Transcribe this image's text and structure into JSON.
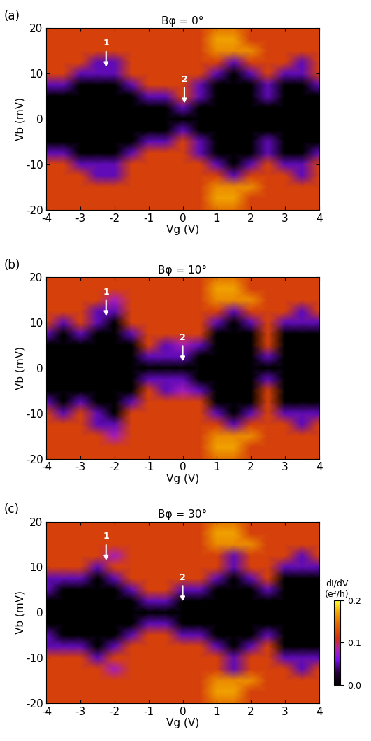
{
  "chart_data": [
    {
      "type": "heatmap",
      "panel_label": "(a)",
      "title": "Bφ = 0°",
      "x_label": "Vg (V)",
      "y_label": "Vb (mV)",
      "xlim": [
        -4,
        4
      ],
      "ylim": [
        -20,
        20
      ],
      "xticks": [
        -4,
        -3,
        -2,
        -1,
        0,
        1,
        2,
        3,
        4
      ],
      "yticks": [
        -20,
        -10,
        0,
        10,
        20
      ],
      "x": [
        -4,
        -3.5,
        -3,
        -2.5,
        -2,
        -1.5,
        -1,
        -0.5,
        0,
        0.5,
        1,
        1.5,
        2,
        2.5,
        3,
        3.5,
        4
      ],
      "y": [
        -20,
        -17.5,
        -15,
        -12.5,
        -10,
        -7.5,
        -5,
        -2.5,
        0,
        2.5,
        5,
        7.5,
        10,
        12.5,
        15,
        17.5,
        20
      ],
      "cells": [
        [
          0.12,
          0.12,
          0.12,
          0.12,
          0.12,
          0.12,
          0.12,
          0.12,
          0.12,
          0.12,
          0.15,
          0.15,
          0.12,
          0.12,
          0.12,
          0.12,
          0.12
        ],
        [
          0.12,
          0.12,
          0.12,
          0.12,
          0.12,
          0.12,
          0.12,
          0.12,
          0.12,
          0.12,
          0.17,
          0.17,
          0.12,
          0.12,
          0.12,
          0.12,
          0.12
        ],
        [
          0.12,
          0.12,
          0.12,
          0.12,
          0.12,
          0.12,
          0.12,
          0.12,
          0.12,
          0.12,
          0.16,
          0.16,
          0.16,
          0.12,
          0.12,
          0.12,
          0.12
        ],
        [
          0.12,
          0.12,
          0.12,
          0.05,
          0.05,
          0.12,
          0.12,
          0.12,
          0.12,
          0.12,
          0.12,
          0.05,
          0.12,
          0.12,
          0.12,
          0.05,
          0.12
        ],
        [
          0.12,
          0.12,
          0.05,
          0.05,
          0.05,
          0.12,
          0.12,
          0.12,
          0.12,
          0.12,
          0.05,
          0.0,
          0.05,
          0.12,
          0.05,
          0.05,
          0.12
        ],
        [
          0.05,
          0.05,
          0.0,
          0.0,
          0.0,
          0.05,
          0.12,
          0.12,
          0.12,
          0.05,
          0.0,
          0.0,
          0.0,
          0.05,
          0.0,
          0.0,
          0.05
        ],
        [
          0.0,
          0.0,
          0.0,
          0.0,
          0.0,
          0.0,
          0.05,
          0.05,
          0.12,
          0.05,
          0.0,
          0.0,
          0.0,
          0.05,
          0.0,
          0.0,
          0.0
        ],
        [
          0.0,
          0.0,
          0.0,
          0.0,
          0.0,
          0.0,
          0.0,
          0.0,
          0.05,
          0.0,
          0.0,
          0.0,
          0.0,
          0.0,
          0.0,
          0.0,
          0.0
        ],
        [
          0.0,
          0.0,
          0.0,
          0.0,
          0.0,
          0.0,
          0.0,
          0.0,
          0.0,
          0.0,
          0.0,
          0.0,
          0.0,
          0.0,
          0.0,
          0.0,
          0.0
        ],
        [
          0.0,
          0.0,
          0.0,
          0.0,
          0.0,
          0.0,
          0.0,
          0.0,
          0.05,
          0.0,
          0.0,
          0.0,
          0.0,
          0.0,
          0.0,
          0.0,
          0.0
        ],
        [
          0.0,
          0.0,
          0.0,
          0.0,
          0.0,
          0.0,
          0.05,
          0.05,
          0.12,
          0.05,
          0.0,
          0.0,
          0.0,
          0.05,
          0.0,
          0.0,
          0.0
        ],
        [
          0.05,
          0.05,
          0.0,
          0.0,
          0.0,
          0.05,
          0.12,
          0.12,
          0.12,
          0.05,
          0.0,
          0.0,
          0.0,
          0.05,
          0.0,
          0.0,
          0.05
        ],
        [
          0.12,
          0.12,
          0.05,
          0.05,
          0.05,
          0.12,
          0.12,
          0.12,
          0.12,
          0.12,
          0.05,
          0.0,
          0.05,
          0.12,
          0.05,
          0.05,
          0.12
        ],
        [
          0.12,
          0.12,
          0.12,
          0.05,
          0.05,
          0.12,
          0.12,
          0.12,
          0.12,
          0.12,
          0.12,
          0.05,
          0.12,
          0.12,
          0.12,
          0.05,
          0.12
        ],
        [
          0.12,
          0.12,
          0.12,
          0.12,
          0.12,
          0.12,
          0.12,
          0.12,
          0.12,
          0.12,
          0.16,
          0.16,
          0.16,
          0.12,
          0.12,
          0.12,
          0.12
        ],
        [
          0.12,
          0.12,
          0.12,
          0.12,
          0.12,
          0.12,
          0.12,
          0.12,
          0.12,
          0.12,
          0.17,
          0.17,
          0.12,
          0.12,
          0.12,
          0.12,
          0.12
        ],
        [
          0.12,
          0.12,
          0.12,
          0.12,
          0.12,
          0.12,
          0.12,
          0.12,
          0.12,
          0.12,
          0.15,
          0.15,
          0.12,
          0.12,
          0.12,
          0.12,
          0.12
        ]
      ],
      "annotations": [
        {
          "text": "1",
          "x": -2.25,
          "y": 11
        },
        {
          "text": "2",
          "x": 0.05,
          "y": 3
        }
      ]
    },
    {
      "type": "heatmap",
      "panel_label": "(b)",
      "title": "Bφ = 10°",
      "x_label": "Vg (V)",
      "y_label": "Vb (mV)",
      "xlim": [
        -4,
        4
      ],
      "ylim": [
        -20,
        20
      ],
      "xticks": [
        -4,
        -3,
        -2,
        -1,
        0,
        1,
        2,
        3,
        4
      ],
      "yticks": [
        -20,
        -10,
        0,
        10,
        20
      ],
      "x": [
        -4,
        -3.5,
        -3,
        -2.5,
        -2,
        -1.5,
        -1,
        -0.5,
        0,
        0.5,
        1,
        1.5,
        2,
        2.5,
        3,
        3.5,
        4
      ],
      "y": [
        -20,
        -17.5,
        -15,
        -12.5,
        -10,
        -7.5,
        -5,
        -2.5,
        0,
        2.5,
        5,
        7.5,
        10,
        12.5,
        15,
        17.5,
        20
      ],
      "cells": [
        [
          0.12,
          0.12,
          0.12,
          0.12,
          0.12,
          0.12,
          0.12,
          0.12,
          0.12,
          0.12,
          0.15,
          0.15,
          0.12,
          0.12,
          0.12,
          0.12,
          0.12
        ],
        [
          0.12,
          0.12,
          0.12,
          0.12,
          0.12,
          0.12,
          0.12,
          0.12,
          0.12,
          0.12,
          0.17,
          0.17,
          0.12,
          0.12,
          0.12,
          0.12,
          0.12
        ],
        [
          0.12,
          0.12,
          0.12,
          0.12,
          0.08,
          0.12,
          0.12,
          0.12,
          0.12,
          0.12,
          0.16,
          0.16,
          0.16,
          0.12,
          0.12,
          0.12,
          0.12
        ],
        [
          0.12,
          0.12,
          0.12,
          0.05,
          0.05,
          0.12,
          0.12,
          0.12,
          0.12,
          0.12,
          0.12,
          0.05,
          0.12,
          0.12,
          0.12,
          0.05,
          0.12
        ],
        [
          0.12,
          0.05,
          0.12,
          0.05,
          0.0,
          0.12,
          0.12,
          0.12,
          0.12,
          0.12,
          0.05,
          0.0,
          0.05,
          0.12,
          0.05,
          0.05,
          0.05
        ],
        [
          0.05,
          0.0,
          0.05,
          0.0,
          0.0,
          0.05,
          0.12,
          0.12,
          0.12,
          0.12,
          0.0,
          0.0,
          0.0,
          0.12,
          0.0,
          0.0,
          0.0
        ],
        [
          0.0,
          0.0,
          0.0,
          0.0,
          0.0,
          0.0,
          0.12,
          0.05,
          0.08,
          0.05,
          0.0,
          0.0,
          0.0,
          0.12,
          0.0,
          0.0,
          0.0
        ],
        [
          0.0,
          0.0,
          0.0,
          0.0,
          0.0,
          0.0,
          0.05,
          0.05,
          0.05,
          0.0,
          0.0,
          0.0,
          0.0,
          0.05,
          0.0,
          0.0,
          0.0
        ],
        [
          0.0,
          0.0,
          0.0,
          0.0,
          0.0,
          0.0,
          0.0,
          0.0,
          0.0,
          0.0,
          0.0,
          0.0,
          0.0,
          0.0,
          0.0,
          0.0,
          0.0
        ],
        [
          0.0,
          0.0,
          0.0,
          0.0,
          0.0,
          0.0,
          0.05,
          0.05,
          0.05,
          0.0,
          0.0,
          0.0,
          0.0,
          0.05,
          0.0,
          0.0,
          0.0
        ],
        [
          0.0,
          0.0,
          0.0,
          0.0,
          0.0,
          0.0,
          0.12,
          0.05,
          0.08,
          0.05,
          0.0,
          0.0,
          0.0,
          0.12,
          0.0,
          0.0,
          0.0
        ],
        [
          0.05,
          0.0,
          0.05,
          0.0,
          0.0,
          0.05,
          0.12,
          0.12,
          0.12,
          0.12,
          0.0,
          0.0,
          0.0,
          0.12,
          0.0,
          0.0,
          0.0
        ],
        [
          0.12,
          0.05,
          0.12,
          0.05,
          0.0,
          0.12,
          0.12,
          0.12,
          0.12,
          0.12,
          0.05,
          0.0,
          0.05,
          0.12,
          0.05,
          0.05,
          0.05
        ],
        [
          0.12,
          0.12,
          0.12,
          0.05,
          0.05,
          0.12,
          0.12,
          0.12,
          0.12,
          0.12,
          0.12,
          0.05,
          0.12,
          0.12,
          0.12,
          0.05,
          0.12
        ],
        [
          0.12,
          0.12,
          0.12,
          0.12,
          0.08,
          0.12,
          0.12,
          0.12,
          0.12,
          0.12,
          0.16,
          0.16,
          0.16,
          0.12,
          0.12,
          0.12,
          0.12
        ],
        [
          0.12,
          0.12,
          0.12,
          0.12,
          0.12,
          0.12,
          0.12,
          0.12,
          0.12,
          0.12,
          0.17,
          0.17,
          0.12,
          0.12,
          0.12,
          0.12,
          0.12
        ],
        [
          0.12,
          0.12,
          0.12,
          0.12,
          0.12,
          0.12,
          0.12,
          0.12,
          0.12,
          0.12,
          0.15,
          0.15,
          0.12,
          0.12,
          0.12,
          0.12,
          0.12
        ]
      ],
      "annotations": [
        {
          "text": "1",
          "x": -2.25,
          "y": 11
        },
        {
          "text": "2",
          "x": 0.0,
          "y": 1
        }
      ]
    },
    {
      "type": "heatmap",
      "panel_label": "(c)",
      "title": "Bφ = 30°",
      "x_label": "Vg (V)",
      "y_label": "Vb (mV)",
      "xlim": [
        -4,
        4
      ],
      "ylim": [
        -20,
        20
      ],
      "xticks": [
        -4,
        -3,
        -2,
        -1,
        0,
        1,
        2,
        3,
        4
      ],
      "yticks": [
        -20,
        -10,
        0,
        10,
        20
      ],
      "x": [
        -4,
        -3.5,
        -3,
        -2.5,
        -2,
        -1.5,
        -1,
        -0.5,
        0,
        0.5,
        1,
        1.5,
        2,
        2.5,
        3,
        3.5,
        4
      ],
      "y": [
        -20,
        -17.5,
        -15,
        -12.5,
        -10,
        -7.5,
        -5,
        -2.5,
        0,
        2.5,
        5,
        7.5,
        10,
        12.5,
        15,
        17.5,
        20
      ],
      "cells": [
        [
          0.12,
          0.12,
          0.12,
          0.12,
          0.12,
          0.12,
          0.12,
          0.12,
          0.12,
          0.12,
          0.15,
          0.15,
          0.12,
          0.12,
          0.12,
          0.12,
          0.12
        ],
        [
          0.12,
          0.12,
          0.12,
          0.12,
          0.12,
          0.12,
          0.12,
          0.12,
          0.12,
          0.12,
          0.17,
          0.17,
          0.12,
          0.12,
          0.12,
          0.12,
          0.12
        ],
        [
          0.12,
          0.12,
          0.12,
          0.12,
          0.12,
          0.12,
          0.12,
          0.12,
          0.12,
          0.12,
          0.16,
          0.16,
          0.16,
          0.12,
          0.12,
          0.12,
          0.12
        ],
        [
          0.12,
          0.12,
          0.12,
          0.12,
          0.08,
          0.12,
          0.12,
          0.12,
          0.12,
          0.12,
          0.12,
          0.05,
          0.12,
          0.12,
          0.12,
          0.05,
          0.12
        ],
        [
          0.12,
          0.12,
          0.12,
          0.05,
          0.12,
          0.12,
          0.12,
          0.12,
          0.12,
          0.12,
          0.12,
          0.05,
          0.12,
          0.12,
          0.05,
          0.05,
          0.05
        ],
        [
          0.05,
          0.05,
          0.05,
          0.0,
          0.05,
          0.12,
          0.12,
          0.12,
          0.12,
          0.12,
          0.05,
          0.0,
          0.05,
          0.12,
          0.0,
          0.0,
          0.0
        ],
        [
          0.05,
          0.0,
          0.0,
          0.0,
          0.0,
          0.05,
          0.12,
          0.12,
          0.05,
          0.05,
          0.0,
          0.0,
          0.0,
          0.05,
          0.0,
          0.0,
          0.0
        ],
        [
          0.0,
          0.0,
          0.0,
          0.0,
          0.0,
          0.0,
          0.05,
          0.05,
          0.0,
          0.0,
          0.0,
          0.0,
          0.0,
          0.0,
          0.0,
          0.0,
          0.0
        ],
        [
          0.0,
          0.0,
          0.0,
          0.0,
          0.0,
          0.0,
          0.0,
          0.0,
          0.0,
          0.0,
          0.0,
          0.0,
          0.0,
          0.0,
          0.0,
          0.0,
          0.0
        ],
        [
          0.0,
          0.0,
          0.0,
          0.0,
          0.0,
          0.0,
          0.05,
          0.05,
          0.0,
          0.0,
          0.0,
          0.0,
          0.0,
          0.0,
          0.0,
          0.0,
          0.0
        ],
        [
          0.05,
          0.0,
          0.0,
          0.0,
          0.0,
          0.05,
          0.12,
          0.12,
          0.05,
          0.05,
          0.0,
          0.0,
          0.0,
          0.05,
          0.0,
          0.0,
          0.0
        ],
        [
          0.05,
          0.05,
          0.05,
          0.0,
          0.05,
          0.12,
          0.12,
          0.12,
          0.12,
          0.12,
          0.05,
          0.0,
          0.05,
          0.12,
          0.0,
          0.0,
          0.0
        ],
        [
          0.12,
          0.12,
          0.12,
          0.05,
          0.12,
          0.12,
          0.12,
          0.12,
          0.12,
          0.12,
          0.12,
          0.05,
          0.12,
          0.12,
          0.05,
          0.05,
          0.05
        ],
        [
          0.12,
          0.12,
          0.12,
          0.12,
          0.08,
          0.12,
          0.12,
          0.12,
          0.12,
          0.12,
          0.12,
          0.05,
          0.12,
          0.12,
          0.12,
          0.05,
          0.12
        ],
        [
          0.12,
          0.12,
          0.12,
          0.12,
          0.12,
          0.12,
          0.12,
          0.12,
          0.12,
          0.12,
          0.16,
          0.16,
          0.16,
          0.12,
          0.12,
          0.12,
          0.12
        ],
        [
          0.12,
          0.12,
          0.12,
          0.12,
          0.12,
          0.12,
          0.12,
          0.12,
          0.12,
          0.12,
          0.17,
          0.17,
          0.12,
          0.12,
          0.12,
          0.12,
          0.12
        ],
        [
          0.12,
          0.12,
          0.12,
          0.12,
          0.12,
          0.12,
          0.12,
          0.12,
          0.12,
          0.12,
          0.15,
          0.15,
          0.12,
          0.12,
          0.12,
          0.12,
          0.12
        ]
      ],
      "annotations": [
        {
          "text": "1",
          "x": -2.25,
          "y": 11
        },
        {
          "text": "2",
          "x": 0.0,
          "y": 2
        }
      ],
      "colorbar": {
        "label": "dI/dV\n(e²/h)",
        "range": [
          0.0,
          0.2
        ],
        "ticks": [
          0.0,
          0.1,
          0.2
        ]
      }
    }
  ]
}
